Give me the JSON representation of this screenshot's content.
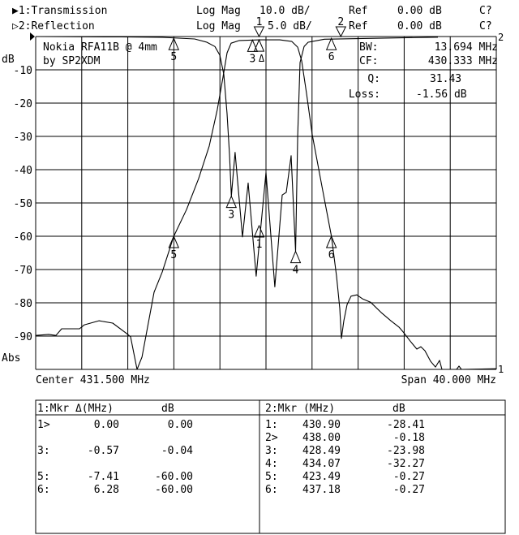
{
  "header": {
    "trace1": {
      "label": "▶1:Transmission",
      "format": "Log Mag",
      "scale": "10.0 dB/",
      "ref_label": "Ref",
      "ref": "0.00 dB",
      "status": "C?"
    },
    "trace2": {
      "label": "▷2:Reflection",
      "format": "Log Mag",
      "scale": "5.0 dB/",
      "ref_label": "Ref",
      "ref": "0.00 dB",
      "status": "C?"
    }
  },
  "annotation": {
    "line1": "Nokia RFA11B @ 4mm",
    "line2": "by SP2XDM"
  },
  "stats": {
    "bw_label": "BW:",
    "bw": "13.694 MHz",
    "cf_label": "CF:",
    "cf": "430.333 MHz",
    "q_label": "Q:",
    "q": "31.43",
    "loss_label": "Loss:",
    "loss": "-1.56 dB"
  },
  "axis": {
    "unit": "dB",
    "scale_mode": "Abs",
    "y_ticks": [
      "-10",
      "-20",
      "-30",
      "-40",
      "-50",
      "-60",
      "-70",
      "-80",
      "-90"
    ]
  },
  "footer": {
    "center": "Center 431.500 MHz",
    "span": "Span 40.000 MHz"
  },
  "marker_table": {
    "left": {
      "title": "1:Mkr Δ(MHz)",
      "unit": "dB",
      "rows": [
        {
          "id": "1>",
          "freq": "0.00",
          "value": "0.00"
        },
        {
          "id": "",
          "freq": "",
          "value": ""
        },
        {
          "id": "3:",
          "freq": "-0.57",
          "value": "-0.04"
        },
        {
          "id": "",
          "freq": "",
          "value": ""
        },
        {
          "id": "5:",
          "freq": "-7.41",
          "value": "-60.00"
        },
        {
          "id": "6:",
          "freq": "6.28",
          "value": "-60.00"
        }
      ]
    },
    "right": {
      "title": "2:Mkr (MHz)",
      "unit": "dB",
      "rows": [
        {
          "id": "1:",
          "freq": "430.90",
          "value": "-28.41"
        },
        {
          "id": "2>",
          "freq": "438.00",
          "value": "-0.18"
        },
        {
          "id": "3:",
          "freq": "428.49",
          "value": "-23.98"
        },
        {
          "id": "4:",
          "freq": "434.07",
          "value": "-32.27"
        },
        {
          "id": "5:",
          "freq": "423.49",
          "value": "-0.27"
        },
        {
          "id": "6:",
          "freq": "437.18",
          "value": "-0.27"
        }
      ]
    }
  },
  "chart_data": {
    "type": "line",
    "title": "",
    "xlabel": "",
    "ylabel": "dB",
    "x_range_mhz": [
      411.5,
      451.5
    ],
    "center_mhz": 431.5,
    "span_mhz": 40.0,
    "x_divisions": 10,
    "y_divisions": 10,
    "grid": true,
    "series": [
      {
        "name": "1:Transmission",
        "end_label": "1",
        "scale_db_per_div": 10.0,
        "ref_db": 0.0,
        "ylim": [
          -100,
          0
        ],
        "x": [
          411.5,
          412.63,
          413.26,
          413.75,
          415.3,
          415.73,
          416.99,
          418.19,
          419.32,
          419.74,
          420.3,
          420.73,
          421.78,
          422.49,
          423.49,
          424.6,
          425.65,
          426.57,
          427.27,
          427.77,
          428.12,
          428.47,
          429.18,
          430.94,
          432.7,
          433.75,
          434.25,
          434.6,
          435.02,
          435.51,
          436.43,
          437.18,
          437.63,
          437.91,
          438.05,
          438.26,
          438.54,
          438.89,
          439.39,
          439.88,
          440.58,
          441.5,
          442.34,
          443.05,
          443.47,
          444.03,
          444.6,
          444.95,
          445.3,
          445.8,
          446.22,
          446.57,
          446.78,
          448.05,
          448.26,
          448.47,
          451.5
        ],
        "y": [
          -89.8,
          -89.5,
          -89.8,
          -87.8,
          -87.8,
          -86.6,
          -85.4,
          -86.1,
          -89.0,
          -90.2,
          -100,
          -96.3,
          -76.8,
          -70.7,
          -60.0,
          -52.0,
          -42.7,
          -32.9,
          -22.0,
          -12.2,
          -4.9,
          -2.0,
          -1.2,
          -1.0,
          -1.0,
          -1.5,
          -3.2,
          -7.3,
          -17.1,
          -29.3,
          -46.3,
          -60.0,
          -72.0,
          -81.7,
          -90.7,
          -85.4,
          -80.5,
          -78.0,
          -77.6,
          -78.8,
          -79.8,
          -82.9,
          -85.4,
          -87.3,
          -89.0,
          -91.5,
          -93.9,
          -93.2,
          -94.4,
          -97.6,
          -99.3,
          -97.3,
          -100,
          -100,
          -99.0,
          -100,
          -99.8
        ]
      },
      {
        "name": "2:Reflection",
        "end_label": "2",
        "scale_db_per_div": 5.0,
        "ref_db": 0.0,
        "ylim": [
          -50,
          0
        ],
        "x": [
          411.5,
          418.96,
          422.49,
          425.3,
          426.36,
          427.06,
          427.49,
          427.84,
          428.12,
          428.33,
          428.49,
          428.82,
          429.46,
          429.95,
          430.65,
          431.5,
          432.27,
          432.91,
          433.26,
          433.68,
          434.07,
          434.25,
          434.46,
          434.81,
          435.16,
          436.57,
          446.43
        ],
        "y": [
          0.0,
          -0.06,
          -0.12,
          -0.37,
          -0.85,
          -1.5,
          -2.8,
          -5.7,
          -11.6,
          -17.7,
          -23.98,
          -17.4,
          -30.1,
          -22.0,
          -36.0,
          -20.4,
          -37.6,
          -23.8,
          -23.4,
          -17.9,
          -32.27,
          -14.9,
          -3.9,
          -1.5,
          -0.85,
          -0.4,
          -0.1
        ]
      }
    ],
    "markers": {
      "trace1": [
        {
          "label": "1",
          "delta_mhz": 0.0,
          "db": 0.0,
          "active": true,
          "reference": true,
          "ref_symbol": "Δ"
        },
        {
          "label": "3",
          "delta_mhz": -0.57,
          "db": -0.04
        },
        {
          "label": "5",
          "delta_mhz": -7.41,
          "db": -60.0
        },
        {
          "label": "6",
          "delta_mhz": 6.28,
          "db": -60.0
        }
      ],
      "trace2": [
        {
          "label": "1",
          "freq_mhz": 430.9,
          "db": -28.41
        },
        {
          "label": "2",
          "freq_mhz": 438.0,
          "db": -0.18,
          "active": true
        },
        {
          "label": "3",
          "freq_mhz": 428.49,
          "db": -23.98
        },
        {
          "label": "4",
          "freq_mhz": 434.07,
          "db": -32.27
        },
        {
          "label": "5",
          "freq_mhz": 423.49,
          "db": -0.27
        },
        {
          "label": "6",
          "freq_mhz": 437.18,
          "db": -0.27
        }
      ]
    }
  }
}
